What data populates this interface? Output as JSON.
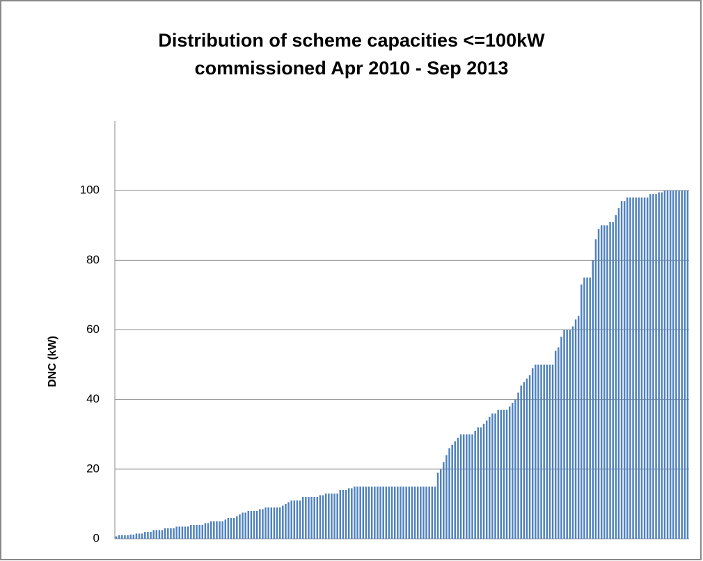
{
  "chart_data": {
    "type": "bar",
    "title": [
      "Distribution of scheme capacities <=100kW",
      "commissioned Apr 2010 - Sep 2013"
    ],
    "ylabel": "DNC (kW)",
    "color": "#4f81bd",
    "ylim": [
      0,
      120
    ],
    "yticks": [
      0,
      20,
      40,
      60,
      80,
      100
    ],
    "grid": true,
    "categories": [
      null,
      null,
      null,
      null,
      null,
      null,
      null,
      null,
      null,
      null,
      null,
      null,
      null,
      null,
      null,
      null,
      null,
      null,
      null,
      null,
      null,
      null,
      null,
      null,
      null,
      null,
      null,
      null,
      null,
      null,
      null,
      null,
      null,
      null,
      null,
      null,
      null,
      null,
      null,
      null,
      null,
      null,
      null,
      null,
      null,
      null,
      null,
      null,
      null,
      null,
      null,
      null,
      null,
      null,
      null,
      null,
      null,
      null,
      null,
      null,
      null,
      null,
      null,
      null,
      null,
      null,
      null,
      null,
      null,
      null,
      null,
      null,
      null,
      null,
      null,
      null,
      null,
      null,
      null,
      null,
      null,
      null,
      null,
      null,
      null,
      null,
      null,
      null,
      null,
      null,
      null,
      null,
      null,
      null,
      null,
      null,
      null,
      null,
      null,
      null,
      null,
      null,
      null,
      null,
      null,
      null,
      null,
      null,
      null,
      null,
      null,
      null,
      null,
      null,
      null,
      null,
      null,
      null,
      null,
      null,
      null,
      null,
      null,
      null,
      null,
      null,
      null,
      null,
      null,
      null,
      null,
      null,
      null,
      null,
      null,
      null,
      null,
      null,
      null,
      null,
      null,
      null,
      null,
      null,
      null,
      null,
      null,
      null,
      null,
      null,
      null,
      null,
      null,
      null,
      null,
      null,
      null,
      null,
      null,
      null,
      null,
      null,
      null,
      null,
      null,
      null,
      null,
      null,
      null,
      null,
      null,
      null,
      null,
      null,
      null,
      null,
      null,
      null,
      null,
      null,
      null,
      null,
      null,
      null,
      null,
      null,
      null,
      null,
      null,
      null,
      null,
      null,
      null,
      null,
      null,
      null,
      null,
      null,
      null,
      null
    ],
    "values": [
      0.7,
      1,
      1,
      1,
      1,
      1.2,
      1.2,
      1.5,
      1.5,
      1.5,
      2,
      2,
      2,
      2.5,
      2.5,
      2.5,
      2.5,
      3,
      3,
      3,
      3,
      3.5,
      3.5,
      3.5,
      3.5,
      3.5,
      4,
      4,
      4,
      4,
      4,
      4.5,
      4.5,
      5,
      5,
      5,
      5,
      5,
      5.5,
      6,
      6,
      6,
      6.5,
      7,
      7.5,
      7.5,
      8,
      8,
      8,
      8,
      8.5,
      8.5,
      9,
      9,
      9,
      9,
      9,
      9,
      9.5,
      10,
      10.5,
      11,
      11,
      11,
      11,
      12,
      12,
      12,
      12,
      12,
      12,
      12.5,
      12.5,
      13,
      13,
      13,
      13,
      13,
      14,
      14,
      14,
      14.5,
      14.5,
      15,
      15,
      15,
      15,
      15,
      15,
      15,
      15,
      15,
      15,
      15,
      15,
      15,
      15,
      15,
      15,
      15,
      15,
      15,
      15,
      15,
      15,
      15,
      15,
      15,
      15,
      15,
      15,
      15,
      19,
      20,
      22,
      24,
      26,
      27,
      28,
      29,
      30,
      30,
      30,
      30,
      30,
      31,
      32,
      32,
      33,
      34,
      35,
      36,
      36,
      37,
      37,
      37,
      37,
      38,
      39,
      40,
      42,
      44,
      45,
      46,
      47,
      49,
      50,
      50,
      50,
      50,
      50,
      50,
      50,
      54,
      55,
      58,
      60,
      60,
      60,
      61,
      63,
      64,
      73,
      75,
      75,
      75,
      80,
      86,
      89,
      90,
      90,
      90,
      91,
      91,
      93,
      95,
      97,
      97,
      98,
      98,
      98,
      98,
      98,
      98,
      98,
      98,
      99,
      99,
      99,
      99.5,
      99.5,
      100,
      100,
      100,
      100,
      100,
      100,
      100,
      100,
      100
    ]
  }
}
